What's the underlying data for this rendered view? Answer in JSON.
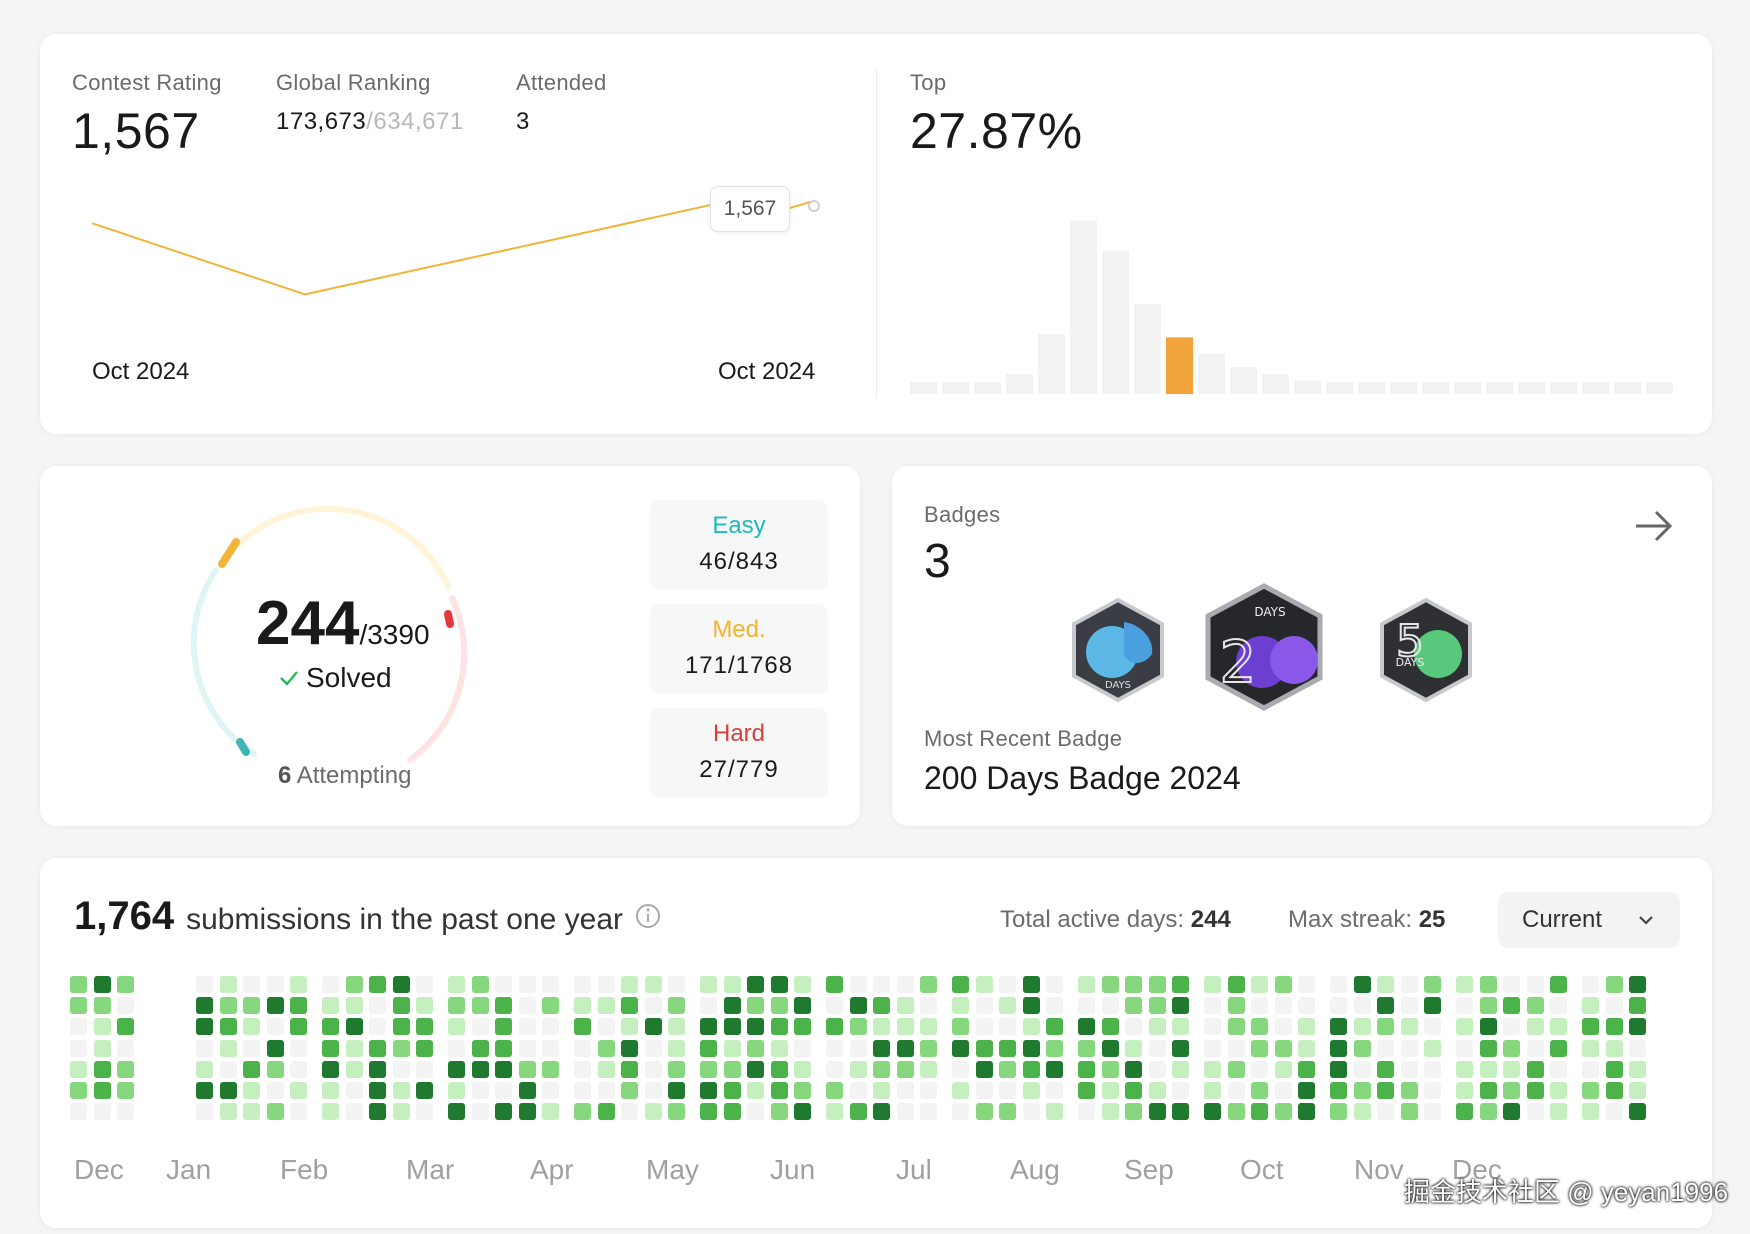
{
  "contest": {
    "rating_label": "Contest Rating",
    "rating_value": "1,567",
    "global_label": "Global Ranking",
    "global_rank": "173,673",
    "global_total": "/634,671",
    "attended_label": "Attended",
    "attended_value": "3",
    "tooltip": "1,567",
    "axis_start": "Oct 2024",
    "axis_end": "Oct 2024",
    "top_label": "Top",
    "top_value": "27.87%",
    "line_points": [
      1550,
      1505,
      1567
    ],
    "histogram": [
      3,
      3,
      3,
      6,
      18,
      52,
      43,
      27,
      17,
      12,
      8,
      6,
      4,
      3,
      3,
      3,
      3,
      3,
      3,
      3,
      3,
      3,
      3,
      3
    ],
    "histogram_highlight_index": 8,
    "colors": {
      "line": "#f0b43a",
      "bar": "#f2f2f3",
      "highlight": "#f2a33a"
    }
  },
  "progress": {
    "solved": "244",
    "total": "/3390",
    "solved_label": "Solved",
    "attempting_count": "6",
    "attempting_label": "Attempting",
    "easy": {
      "label": "Easy",
      "value": "46/843",
      "color": "#1cbaba"
    },
    "medium": {
      "label": "Med.",
      "value": "171/1768",
      "color": "#ffb800"
    },
    "hard": {
      "label": "Hard",
      "value": "27/779",
      "color": "#f63737"
    }
  },
  "badges": {
    "label": "Badges",
    "count": "3",
    "recent_label": "Most Recent Badge",
    "recent_name": "200 Days Badge 2024",
    "icons": [
      "days-badge-icon",
      "200-days-badge-icon",
      "50-days-badge-icon"
    ],
    "badge_text": {
      "b1": "DAYS",
      "b2": "DAYS",
      "b3": "DAYS"
    }
  },
  "submissions": {
    "count": "1,764",
    "text": "submissions in the past one year",
    "active_label": "Total active days:",
    "active_value": "244",
    "streak_label": "Max streak:",
    "streak_value": "25",
    "dropdown": "Current",
    "months": [
      "Dec",
      "Jan",
      "Feb",
      "Mar",
      "Apr",
      "May",
      "Jun",
      "Jul",
      "Aug",
      "Sep",
      "Oct",
      "Nov",
      "Dec"
    ],
    "palette": [
      "#f3f3f4",
      "#c6efc0",
      "#86d77d",
      "#4cb34a",
      "#1f7a30"
    ]
  },
  "watermark": "掘金技术社区 @ yeyan1996"
}
